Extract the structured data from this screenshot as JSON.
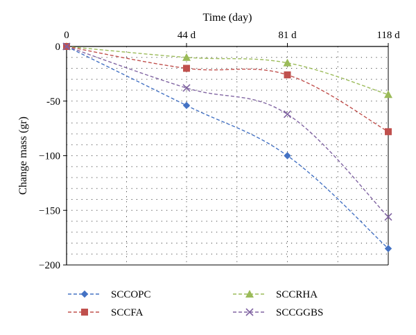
{
  "chart_data": {
    "type": "line",
    "title": "",
    "xlabel": "Time (day)",
    "ylabel": "Change mass (gr)",
    "x": [
      0,
      44,
      81,
      118
    ],
    "x_tick_labels": [
      "0",
      "44 d",
      "81 d",
      "118 d"
    ],
    "xlim": [
      0,
      118
    ],
    "ylim": [
      -200,
      0
    ],
    "y_ticks": [
      0,
      -50,
      -100,
      -150,
      -200
    ],
    "y_tick_labels": [
      "0",
      "-50",
      "−100",
      "−150",
      "−200"
    ],
    "grid": "dotted",
    "legend_position": "bottom",
    "series": [
      {
        "name": "SCCOPC",
        "values": [
          0,
          -54,
          -100,
          -185
        ],
        "color": "#4472C4",
        "marker": "diamond"
      },
      {
        "name": "SCCRHA",
        "values": [
          0,
          -10,
          -15,
          -44
        ],
        "color": "#9BBB59",
        "marker": "triangle"
      },
      {
        "name": "SCCFA",
        "values": [
          0,
          -20,
          -26,
          -78
        ],
        "color": "#C0504D",
        "marker": "square"
      },
      {
        "name": "SCCGGBS",
        "values": [
          0,
          -38,
          -62,
          -156
        ],
        "color": "#8064A2",
        "marker": "x"
      }
    ]
  }
}
